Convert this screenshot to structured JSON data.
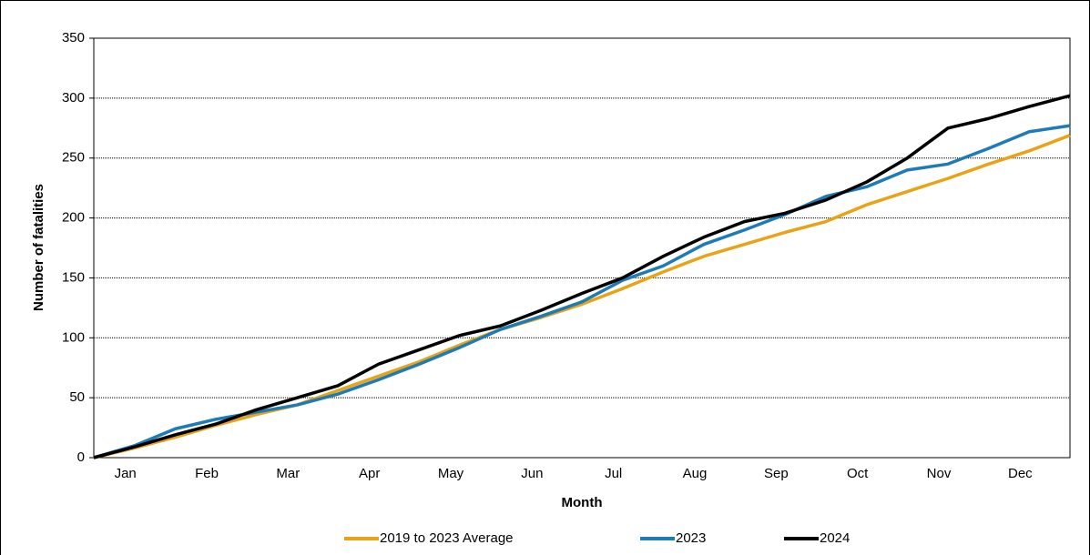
{
  "chart_data": {
    "type": "line",
    "x_label": "Month",
    "y_label": "Number of fatalities",
    "categories": [
      null,
      "Jan",
      null,
      "Feb",
      null,
      "Mar",
      null,
      "Apr",
      null,
      "May",
      null,
      "Jun",
      null,
      "Jul",
      null,
      "Aug",
      null,
      "Sep",
      null,
      "Oct",
      null,
      "Nov",
      null,
      "Dec",
      null
    ],
    "series": [
      {
        "name": "2019 to 2023 Average",
        "color": "#e8a317",
        "values": [
          0,
          8,
          17,
          27,
          36,
          44,
          56,
          68,
          80,
          94,
          107,
          117,
          128,
          141,
          155,
          168,
          178,
          188,
          197,
          211,
          222,
          233,
          245,
          256,
          269
        ]
      },
      {
        "name": "2023",
        "color": "#1f7bb5",
        "values": [
          0,
          10,
          24,
          32,
          38,
          44,
          53,
          65,
          78,
          92,
          107,
          118,
          130,
          148,
          160,
          178,
          190,
          203,
          218,
          226,
          240,
          245,
          258,
          272,
          277
        ]
      },
      {
        "name": "2024",
        "color": "#000000",
        "values": [
          0,
          9,
          19,
          28,
          40,
          50,
          60,
          78,
          90,
          102,
          110,
          123,
          137,
          150,
          168,
          184,
          197,
          204,
          215,
          230,
          250,
          275,
          283,
          293,
          302
        ]
      }
    ],
    "ylim": [
      0,
      350
    ],
    "yticks": [
      0,
      50,
      100,
      150,
      200,
      250,
      300,
      350
    ],
    "grid": true,
    "legend": "bottom"
  }
}
